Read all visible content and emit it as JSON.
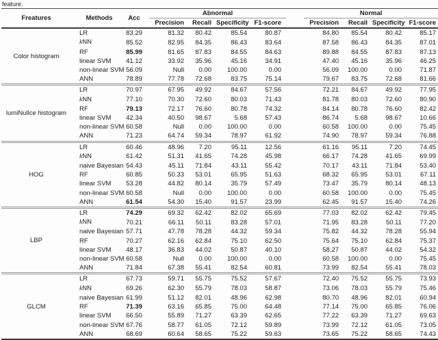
{
  "caption_tail": "feature.",
  "table": {
    "headers": {
      "features": "Freatures",
      "methods": "Methods",
      "acc": "Acc",
      "abnormal": "Abnormal",
      "normal": "Normal",
      "sub": [
        "Precision",
        "Recall",
        "Specificity",
        "F1-score"
      ]
    },
    "groups": [
      {
        "feature": "Color histogram",
        "rows": [
          {
            "method": "LR",
            "acc": "83.29",
            "bold": false,
            "italic_k": false,
            "abnormal": [
              "81.32",
              "80.42",
              "85.54",
              "80.87"
            ],
            "normal": [
              "84.80",
              "85.54",
              "80.42",
              "85.17"
            ]
          },
          {
            "method": "kNN",
            "acc": "85.52",
            "bold": false,
            "italic_k": true,
            "abnormal": [
              "82.95",
              "84.35",
              "86.43",
              "83.64"
            ],
            "normal": [
              "87.58",
              "86.43",
              "84.35",
              "87.01"
            ]
          },
          {
            "method": "RF",
            "acc": "85.99",
            "bold": true,
            "italic_k": false,
            "abnormal": [
              "81.65",
              "87.83",
              "84.55",
              "84.63"
            ],
            "normal": [
              "89.88",
              "84.55",
              "87.83",
              "87.13"
            ]
          },
          {
            "method": "linear SVM",
            "acc": "41.12",
            "bold": false,
            "italic_k": false,
            "abnormal": [
              "33.92",
              "35.96",
              "45.16",
              "34.91"
            ],
            "normal": [
              "47.40",
              "45.16",
              "35.96",
              "46.25"
            ]
          },
          {
            "method": "non-linear SVM",
            "acc": "56.09",
            "bold": false,
            "italic_k": false,
            "abnormal": [
              "Null",
              "0.00",
              "100.00",
              "0.00"
            ],
            "normal": [
              "56.09",
              "100.00",
              "0.00",
              "71.87"
            ]
          },
          {
            "method": "ANN",
            "acc": "78.89",
            "bold": false,
            "italic_k": false,
            "abnormal": [
              "77.78",
              "72.68",
              "83.75",
              "75.14"
            ],
            "normal": [
              "79.67",
              "83.75",
              "72.68",
              "81.66"
            ]
          }
        ]
      },
      {
        "feature": "lumiNullce histogram",
        "rows": [
          {
            "method": "LR",
            "acc": "70.97",
            "bold": false,
            "italic_k": false,
            "abnormal": [
              "67.95",
              "49.92",
              "84.67",
              "57.56"
            ],
            "normal": [
              "72.21",
              "84.67",
              "49.92",
              "77.95"
            ]
          },
          {
            "method": "kNN",
            "acc": "77.10",
            "bold": false,
            "italic_k": true,
            "abnormal": [
              "70.30",
              "72.60",
              "80.03",
              "71.43"
            ],
            "normal": [
              "81.78",
              "80.03",
              "72.60",
              "80.90"
            ]
          },
          {
            "method": "RF",
            "acc": "79.13",
            "bold": true,
            "italic_k": false,
            "abnormal": [
              "72.17",
              "76.60",
              "80.78",
              "74.32"
            ],
            "normal": [
              "84.14",
              "80.78",
              "76.60",
              "82.42"
            ]
          },
          {
            "method": "linear SVM",
            "acc": "42.34",
            "bold": false,
            "italic_k": false,
            "abnormal": [
              "40.50",
              "98.67",
              "5.68",
              "57.43"
            ],
            "normal": [
              "86.74",
              "5.68",
              "98.67",
              "10.66"
            ]
          },
          {
            "method": "non-linear SVM",
            "acc": "60.58",
            "bold": false,
            "italic_k": false,
            "abnormal": [
              "Null",
              "0.00",
              "100.00",
              "0.00"
            ],
            "normal": [
              "60.58",
              "100.00",
              "0.00",
              "75.45"
            ]
          },
          {
            "method": "ANN",
            "acc": "71.23",
            "bold": false,
            "italic_k": false,
            "abnormal": [
              "64.74",
              "59.34",
              "78.97",
              "61.92"
            ],
            "normal": [
              "74.90",
              "78.97",
              "59.34",
              "76.88"
            ]
          }
        ]
      },
      {
        "feature": "HOG",
        "rows": [
          {
            "method": "LR",
            "acc": "60.46",
            "bold": false,
            "italic_k": false,
            "abnormal": [
              "48.96",
              "7.20",
              "95.11",
              "12.56"
            ],
            "normal": [
              "61.16",
              "95.11",
              "7.20",
              "74.45"
            ]
          },
          {
            "method": "kNN",
            "acc": "61.42",
            "bold": false,
            "italic_k": true,
            "abnormal": [
              "51.31",
              "41.65",
              "74.28",
              "45.98"
            ],
            "normal": [
              "66.17",
              "74.28",
              "41.65",
              "69.99"
            ]
          },
          {
            "method": "naive Bayesian",
            "acc": "54.43",
            "bold": false,
            "italic_k": false,
            "abnormal": [
              "45.11",
              "71.84",
              "43.11",
              "55.42"
            ],
            "normal": [
              "70.17",
              "43.11",
              "71.84",
              "53.40"
            ]
          },
          {
            "method": "RF",
            "acc": "60.85",
            "bold": false,
            "italic_k": false,
            "abnormal": [
              "50.33",
              "53.01",
              "65.95",
              "51.63"
            ],
            "normal": [
              "68.32",
              "65.95",
              "53.01",
              "67.11"
            ]
          },
          {
            "method": "linear SVM",
            "acc": "53.28",
            "bold": false,
            "italic_k": false,
            "abnormal": [
              "44.82",
              "80.14",
              "35.79",
              "57.49"
            ],
            "normal": [
              "73.47",
              "35.79",
              "80.14",
              "48.13"
            ]
          },
          {
            "method": "non-linear SVM",
            "acc": "60.58",
            "bold": false,
            "italic_k": false,
            "abnormal": [
              "Null",
              "0.00",
              "100.00",
              "0.00"
            ],
            "normal": [
              "60.58",
              "100.00",
              "0.00",
              "75.45"
            ]
          },
          {
            "method": "ANN",
            "acc": "61.54",
            "bold": true,
            "italic_k": false,
            "abnormal": [
              "54.30",
              "15.40",
              "91.57",
              "23.99"
            ],
            "normal": [
              "62.45",
              "91.57",
              "15.40",
              "74.26"
            ]
          }
        ]
      },
      {
        "feature": "LBP",
        "rows": [
          {
            "method": "LR",
            "acc": "74.29",
            "bold": true,
            "italic_k": false,
            "abnormal": [
              "69.32",
              "62.42",
              "82.02",
              "65.69"
            ],
            "normal": [
              "77.03",
              "82.02",
              "62.42",
              "79.45"
            ]
          },
          {
            "method": "kNN",
            "acc": "70.21",
            "bold": false,
            "italic_k": true,
            "abnormal": [
              "66.11",
              "50.11",
              "83.28",
              "57.01"
            ],
            "normal": [
              "71.95",
              "83.28",
              "50.11",
              "77.20"
            ]
          },
          {
            "method": "naive Bayesian",
            "acc": "57.71",
            "bold": false,
            "italic_k": false,
            "abnormal": [
              "47.78",
              "78.28",
              "44.32",
              "59.34"
            ],
            "normal": [
              "75.82",
              "44.32",
              "78.28",
              "55.94"
            ]
          },
          {
            "method": "RF",
            "acc": "70.27",
            "bold": false,
            "italic_k": false,
            "abnormal": [
              "62.16",
              "62.84",
              "75.10",
              "62.50"
            ],
            "normal": [
              "75.64",
              "75.10",
              "62.84",
              "75.37"
            ]
          },
          {
            "method": "linear SVM",
            "acc": "48.17",
            "bold": false,
            "italic_k": false,
            "abnormal": [
              "36.83",
              "44.02",
              "50.87",
              "40.10"
            ],
            "normal": [
              "58.27",
              "50.87",
              "44.02",
              "54.32"
            ]
          },
          {
            "method": "non-linear SVM",
            "acc": "60.58",
            "bold": false,
            "italic_k": false,
            "abnormal": [
              "Null",
              "0.00",
              "100.00",
              "0.00"
            ],
            "normal": [
              "60.58",
              "100.00",
              "0.00",
              "75.45"
            ]
          },
          {
            "method": "ANN",
            "acc": "71.84",
            "bold": false,
            "italic_k": false,
            "abnormal": [
              "67.38",
              "55.41",
              "82.54",
              "60.81"
            ],
            "normal": [
              "73.99",
              "82.54",
              "55.41",
              "78.03"
            ]
          }
        ]
      },
      {
        "feature": "GLCM",
        "rows": [
          {
            "method": "LR",
            "acc": "67.73",
            "bold": false,
            "italic_k": false,
            "abnormal": [
              "59.71",
              "55.75",
              "75.52",
              "57.67"
            ],
            "normal": [
              "72.40",
              "75.52",
              "55.75",
              "73.93"
            ]
          },
          {
            "method": "kNN",
            "acc": "69.26",
            "bold": false,
            "italic_k": true,
            "abnormal": [
              "62.30",
              "55.79",
              "78.03",
              "58.87"
            ],
            "normal": [
              "73.06",
              "78.03",
              "55.79",
              "75.46"
            ]
          },
          {
            "method": "naive Bayesian",
            "acc": "61.99",
            "bold": false,
            "italic_k": false,
            "abnormal": [
              "51.12",
              "82.01",
              "48.96",
              "62.98"
            ],
            "normal": [
              "80.70",
              "48.96",
              "82.01",
              "60.94"
            ]
          },
          {
            "method": "RF",
            "acc": "71.39",
            "bold": true,
            "italic_k": false,
            "abnormal": [
              "63.16",
              "65.85",
              "75.00",
              "64.48"
            ],
            "normal": [
              "77.14",
              "75.00",
              "65.85",
              "76.06"
            ]
          },
          {
            "method": "linear SVM",
            "acc": "66.50",
            "bold": false,
            "italic_k": false,
            "abnormal": [
              "55.89",
              "71.27",
              "63.39",
              "62.65"
            ],
            "normal": [
              "77.22",
              "63.39",
              "71.27",
              "69.63"
            ]
          },
          {
            "method": "non-linear SVM",
            "acc": "67.76",
            "bold": false,
            "italic_k": false,
            "abnormal": [
              "58.77",
              "61.05",
              "72.12",
              "59.89"
            ],
            "normal": [
              "73.99",
              "72.12",
              "61.05",
              "73.05"
            ]
          },
          {
            "method": "ANN",
            "acc": "68.69",
            "bold": false,
            "italic_k": false,
            "abnormal": [
              "60.64",
              "58.65",
              "75.22",
              "59.63"
            ],
            "normal": [
              "73.65",
              "75.22",
              "58.65",
              "74.43"
            ]
          }
        ]
      }
    ]
  }
}
